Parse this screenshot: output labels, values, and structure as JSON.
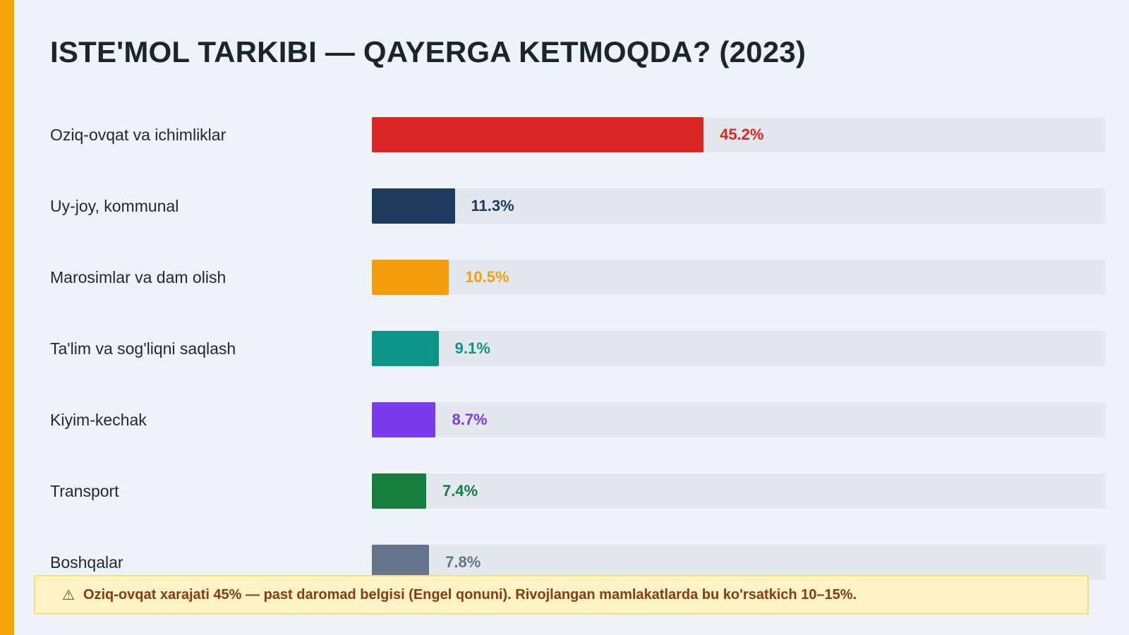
{
  "colors": {
    "accent": "#f5a50a",
    "note_background": "#fdf3c4",
    "note_text": "#8a3a12"
  },
  "note": {
    "icon": "warning-icon",
    "icon_glyph": "⚠",
    "text": "Oziq-ovqat xarajati 45% — past daromad belgisi (Engel qonuni). Rivojlangan mamlakatlarda bu ko'rsatkich 10–15%."
  },
  "chart_data": {
    "type": "bar",
    "orientation": "horizontal",
    "title": "ISTE'MOL TARKIBI — QAYERGA KETMOQDA? (2023)",
    "unit": "%",
    "xlim": [
      0,
      100
    ],
    "grid": false,
    "categories": [
      "Oziq-ovqat va ichimliklar",
      "Uy-joy, kommunal",
      "Marosimlar va dam olish",
      "Ta'lim va sog'liqni saqlash",
      "Kiyim-kechak",
      "Transport",
      "Boshqalar"
    ],
    "values": [
      45.2,
      11.3,
      10.5,
      9.1,
      8.7,
      7.4,
      7.8
    ],
    "value_labels": [
      "45.2%",
      "11.3%",
      "10.5%",
      "9.1%",
      "8.7%",
      "7.4%",
      "7.8%"
    ],
    "colors": [
      "#dc2626",
      "#1e3a5f",
      "#f59e0b",
      "#0d9488",
      "#7c3aed",
      "#15803d",
      "#64748b"
    ]
  }
}
